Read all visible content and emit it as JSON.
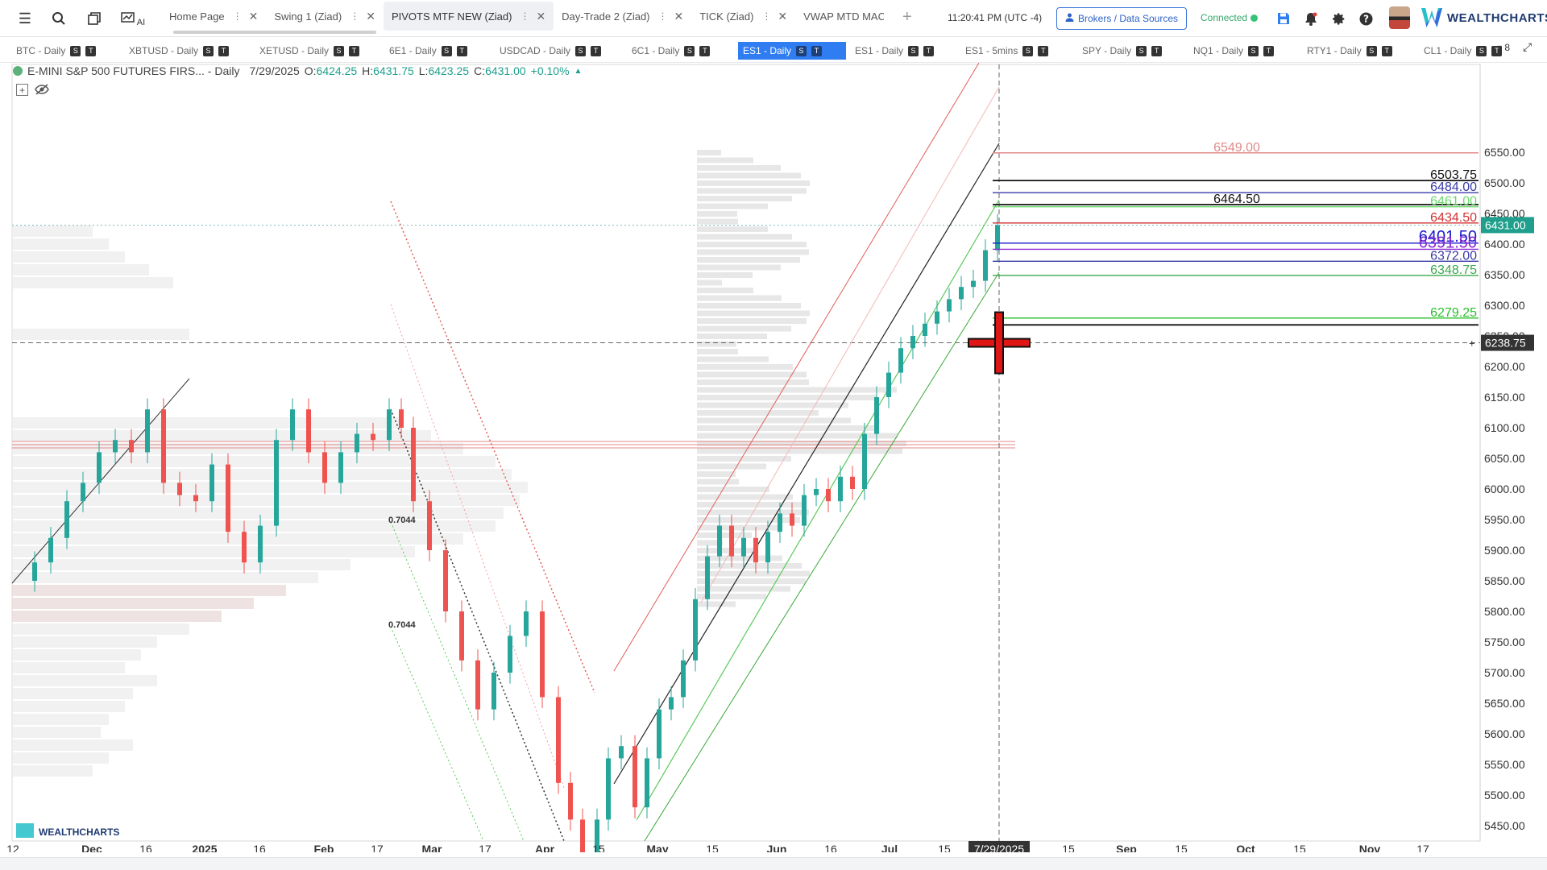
{
  "header": {
    "tabs": [
      {
        "label": "Home Page",
        "active": false
      },
      {
        "label": "Swing 1 (Ziad)",
        "active": false
      },
      {
        "label": "PIVOTS MTF NEW (Ziad)",
        "active": true
      },
      {
        "label": "Day-Trade 2 (Ziad)",
        "active": false
      },
      {
        "label": "TICK (Ziad)",
        "active": false
      },
      {
        "label": "VWAP MTD MAC",
        "active": false
      }
    ],
    "clock": "11:20:41 PM  (UTC -4)",
    "brokers_label": "Brokers / Data Sources",
    "status": "Connected",
    "logo": "WEALTHCHARTS",
    "ai_label": "AI"
  },
  "symbols": [
    {
      "label": "BTC - Daily",
      "active": false
    },
    {
      "label": "XBTUSD - Daily",
      "active": false
    },
    {
      "label": "XETUSD - Daily",
      "active": false
    },
    {
      "label": "6E1 - Daily",
      "active": false
    },
    {
      "label": "USDCAD - Daily",
      "active": false
    },
    {
      "label": "6C1 - Daily",
      "active": false
    },
    {
      "label": "ES1 - Daily",
      "active": true
    },
    {
      "label": "ES1 - Daily",
      "active": false
    },
    {
      "label": "ES1 - 5mins",
      "active": false
    },
    {
      "label": "SPY - Daily",
      "active": false
    },
    {
      "label": "NQ1 - Daily",
      "active": false
    },
    {
      "label": "RTY1 - Daily",
      "active": false
    },
    {
      "label": "CL1 - Daily",
      "active": false
    }
  ],
  "badge_labels": {
    "s": "S",
    "t": "T"
  },
  "more_count": "8",
  "legend": {
    "symbol": "E-MINI S&P 500 FUTURES FIRS... - Daily",
    "date": "7/29/2025",
    "o_label": "O:",
    "o": "6424.25",
    "h_label": "H:",
    "h": "6431.75",
    "l_label": "L:",
    "l": "6423.25",
    "c_label": "C:",
    "c": "6431.00",
    "change": "+0.10%"
  },
  "chart_data": {
    "type": "candlestick",
    "y_ticks": [
      5450,
      5500,
      5550,
      5600,
      5650,
      5700,
      5750,
      5800,
      5850,
      5900,
      5950,
      6000,
      6050,
      6100,
      6150,
      6200,
      6250,
      6300,
      6350,
      6400,
      6450,
      6500,
      6550
    ],
    "x_labels": [
      "12",
      "Dec",
      "16",
      "2025",
      "16",
      "Feb",
      "17",
      "Mar",
      "17",
      "Apr",
      "15",
      "May",
      "15",
      "Jun",
      "16",
      "Jul",
      "15",
      "7/29/2025",
      "15",
      "Sep",
      "15",
      "Oct",
      "15",
      "Nov",
      "17"
    ],
    "last_price": "6431.00",
    "crosshair_price": "6238.75",
    "crosshair_date": "7/29/2025",
    "fib_labels": [
      "0.7044",
      "0.7044"
    ],
    "levels": [
      {
        "label": "6549.00",
        "value": 6549.0,
        "color": "#e08a8a"
      },
      {
        "label": "6503.75",
        "value": 6503.75,
        "color": "#111111"
      },
      {
        "label": "6484.00",
        "value": 6484.0,
        "color": "#3a3aa8"
      },
      {
        "label": "6464.50",
        "value": 6464.5,
        "color": "#111111"
      },
      {
        "label": "6461.00",
        "value": 6461.0,
        "color": "#6ad86a"
      },
      {
        "label": "6434.50",
        "value": 6434.5,
        "color": "#d23030"
      },
      {
        "label": "6401.50",
        "value": 6401.5,
        "color": "#1a1acc"
      },
      {
        "label": "6391.50",
        "value": 6391.5,
        "color": "#8a2ad0"
      },
      {
        "label": "6372.00",
        "value": 6372.0,
        "color": "#3a3aa8"
      },
      {
        "label": "6348.75",
        "value": 6348.75,
        "color": "#3aa84a"
      },
      {
        "label": "6279.25",
        "value": 6279.25,
        "color": "#2ac02a"
      }
    ],
    "watermark": "WEALTHCHARTS"
  },
  "colors": {
    "up": "#26a69a",
    "down": "#ef5350",
    "accent": "#2f7df0",
    "price_tag": "#1f9f8c"
  }
}
